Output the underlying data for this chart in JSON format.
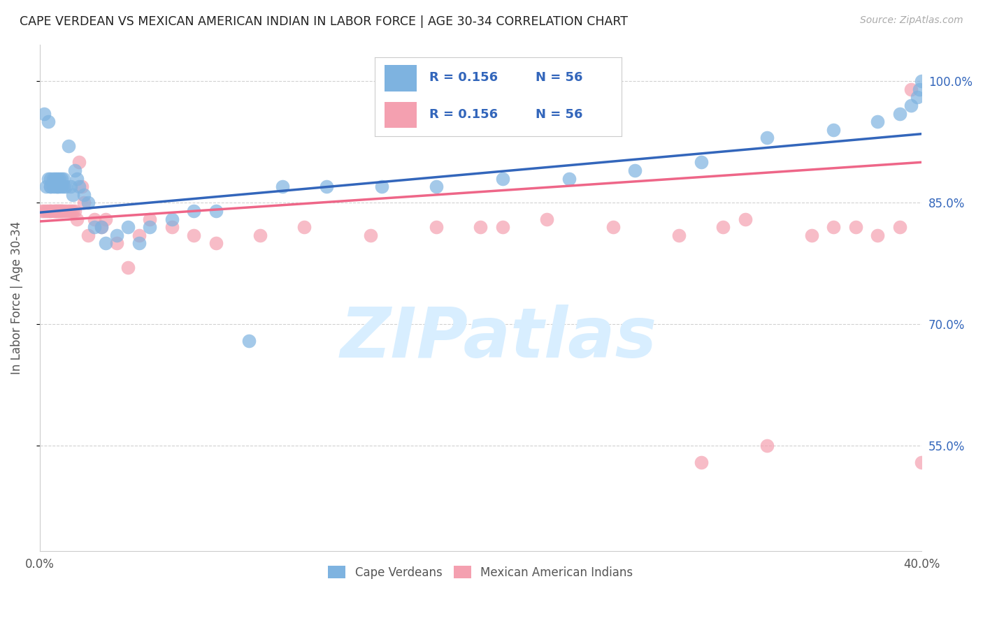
{
  "title": "CAPE VERDEAN VS MEXICAN AMERICAN INDIAN IN LABOR FORCE | AGE 30-34 CORRELATION CHART",
  "source": "Source: ZipAtlas.com",
  "ylabel": "In Labor Force | Age 30-34",
  "yticks": [
    "100.0%",
    "85.0%",
    "70.0%",
    "55.0%"
  ],
  "ytick_vals": [
    1.0,
    0.85,
    0.7,
    0.55
  ],
  "xmin": 0.0,
  "xmax": 0.4,
  "ymin": 0.42,
  "ymax": 1.045,
  "blue_color": "#7EB3E0",
  "pink_color": "#F4A0B0",
  "line_blue": "#3366BB",
  "line_pink": "#EE6688",
  "watermark_text": "ZIPatlas",
  "watermark_color": "#D8EEFF",
  "legend_box_color": "#FFFFFF",
  "legend_box_edge": "#CCCCCC",
  "text_color_dark": "#333333",
  "text_color_blue": "#3366BB",
  "text_color_gray": "#888888",
  "blue_scatter_x": [
    0.002,
    0.003,
    0.004,
    0.004,
    0.005,
    0.005,
    0.005,
    0.006,
    0.006,
    0.007,
    0.007,
    0.008,
    0.008,
    0.008,
    0.009,
    0.009,
    0.01,
    0.01,
    0.011,
    0.011,
    0.012,
    0.013,
    0.014,
    0.015,
    0.016,
    0.017,
    0.018,
    0.02,
    0.022,
    0.025,
    0.028,
    0.03,
    0.035,
    0.04,
    0.045,
    0.05,
    0.06,
    0.07,
    0.08,
    0.095,
    0.11,
    0.13,
    0.155,
    0.18,
    0.21,
    0.24,
    0.27,
    0.3,
    0.33,
    0.36,
    0.38,
    0.39,
    0.395,
    0.398,
    0.399,
    0.4
  ],
  "blue_scatter_y": [
    0.96,
    0.87,
    0.88,
    0.95,
    0.87,
    0.88,
    0.87,
    0.88,
    0.87,
    0.87,
    0.88,
    0.87,
    0.88,
    0.87,
    0.87,
    0.88,
    0.87,
    0.88,
    0.88,
    0.87,
    0.87,
    0.92,
    0.87,
    0.86,
    0.89,
    0.88,
    0.87,
    0.86,
    0.85,
    0.82,
    0.82,
    0.8,
    0.81,
    0.82,
    0.8,
    0.82,
    0.83,
    0.84,
    0.84,
    0.68,
    0.87,
    0.87,
    0.87,
    0.87,
    0.88,
    0.88,
    0.89,
    0.9,
    0.93,
    0.94,
    0.95,
    0.96,
    0.97,
    0.98,
    0.99,
    1.0
  ],
  "pink_scatter_x": [
    0.001,
    0.002,
    0.003,
    0.004,
    0.005,
    0.005,
    0.006,
    0.007,
    0.007,
    0.008,
    0.008,
    0.009,
    0.009,
    0.01,
    0.01,
    0.011,
    0.012,
    0.013,
    0.014,
    0.015,
    0.016,
    0.017,
    0.018,
    0.019,
    0.02,
    0.022,
    0.025,
    0.028,
    0.03,
    0.035,
    0.04,
    0.045,
    0.05,
    0.06,
    0.07,
    0.08,
    0.1,
    0.12,
    0.15,
    0.18,
    0.2,
    0.21,
    0.23,
    0.26,
    0.29,
    0.3,
    0.31,
    0.32,
    0.33,
    0.35,
    0.36,
    0.37,
    0.38,
    0.39,
    0.395,
    0.4
  ],
  "pink_scatter_y": [
    0.84,
    0.84,
    0.84,
    0.84,
    0.84,
    0.84,
    0.84,
    0.84,
    0.84,
    0.84,
    0.84,
    0.84,
    0.84,
    0.84,
    0.84,
    0.84,
    0.84,
    0.84,
    0.84,
    0.84,
    0.84,
    0.83,
    0.9,
    0.87,
    0.85,
    0.81,
    0.83,
    0.82,
    0.83,
    0.8,
    0.77,
    0.81,
    0.83,
    0.82,
    0.81,
    0.8,
    0.81,
    0.82,
    0.81,
    0.82,
    0.82,
    0.82,
    0.83,
    0.82,
    0.81,
    0.53,
    0.82,
    0.83,
    0.55,
    0.81,
    0.82,
    0.82,
    0.81,
    0.82,
    0.99,
    0.53
  ],
  "blue_trend_x0": 0.0,
  "blue_trend_y0": 0.838,
  "blue_trend_x1": 0.4,
  "blue_trend_y1": 0.935,
  "pink_trend_x0": 0.0,
  "pink_trend_y0": 0.827,
  "pink_trend_x1": 0.4,
  "pink_trend_y1": 0.9
}
